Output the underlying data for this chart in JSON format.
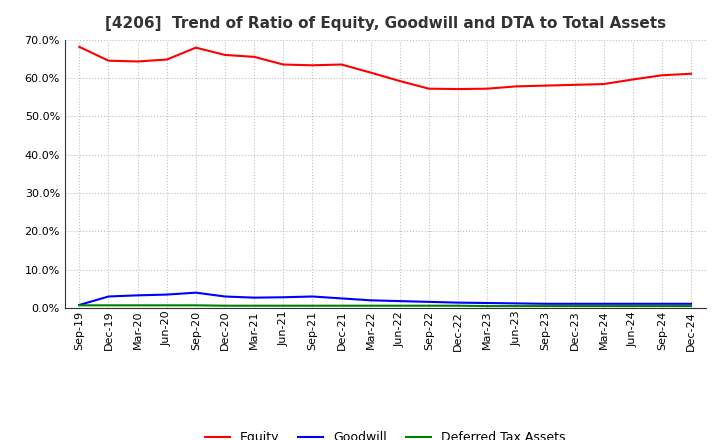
{
  "title": "[4206]  Trend of Ratio of Equity, Goodwill and DTA to Total Assets",
  "x_labels": [
    "Sep-19",
    "Dec-19",
    "Mar-20",
    "Jun-20",
    "Sep-20",
    "Dec-20",
    "Mar-21",
    "Jun-21",
    "Sep-21",
    "Dec-21",
    "Mar-22",
    "Jun-22",
    "Sep-22",
    "Dec-22",
    "Mar-23",
    "Jun-23",
    "Sep-23",
    "Dec-23",
    "Mar-24",
    "Jun-24",
    "Sep-24",
    "Dec-24"
  ],
  "equity": [
    0.681,
    0.645,
    0.643,
    0.648,
    0.679,
    0.66,
    0.655,
    0.635,
    0.633,
    0.635,
    0.614,
    0.592,
    0.572,
    0.571,
    0.572,
    0.578,
    0.58,
    0.582,
    0.584,
    0.596,
    0.607,
    0.611
  ],
  "goodwill": [
    0.008,
    0.03,
    0.033,
    0.035,
    0.04,
    0.03,
    0.027,
    0.028,
    0.03,
    0.025,
    0.02,
    0.018,
    0.016,
    0.014,
    0.013,
    0.012,
    0.011,
    0.011,
    0.011,
    0.011,
    0.011,
    0.011
  ],
  "dta": [
    0.007,
    0.007,
    0.007,
    0.007,
    0.007,
    0.006,
    0.006,
    0.006,
    0.006,
    0.006,
    0.006,
    0.006,
    0.006,
    0.006,
    0.005,
    0.005,
    0.005,
    0.005,
    0.005,
    0.005,
    0.005,
    0.005
  ],
  "equity_color": "#FF0000",
  "goodwill_color": "#0000FF",
  "dta_color": "#008000",
  "ylim": [
    0.0,
    0.7
  ],
  "yticks": [
    0.0,
    0.1,
    0.2,
    0.3,
    0.4,
    0.5,
    0.6,
    0.7
  ],
  "background_color": "#FFFFFF",
  "plot_bg_color": "#FFFFFF",
  "grid_color": "#C0C0C0",
  "title_fontsize": 11,
  "tick_fontsize": 8,
  "legend_labels": [
    "Equity",
    "Goodwill",
    "Deferred Tax Assets"
  ]
}
